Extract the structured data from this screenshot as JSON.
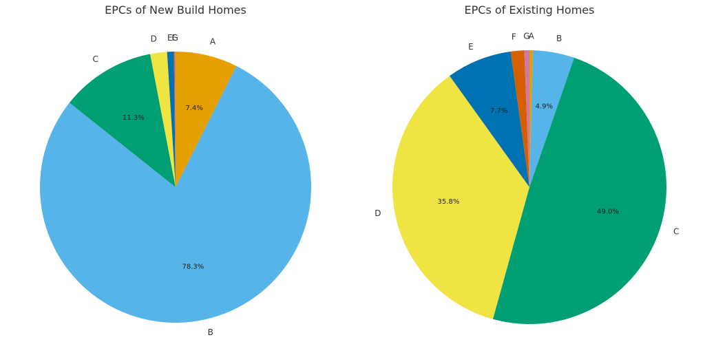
{
  "chart_data": [
    {
      "type": "pie",
      "title": "EPCs of New Build Homes",
      "start_angle_deg": 90,
      "direction": "clockwise",
      "slices": [
        {
          "label": "A",
          "value": 7.4,
          "pct_label": "7.4%",
          "color": "#E69F00"
        },
        {
          "label": "B",
          "value": 78.3,
          "pct_label": "78.3%",
          "color": "#56B4E9"
        },
        {
          "label": "C",
          "value": 11.3,
          "pct_label": "11.3%",
          "color": "#009E73"
        },
        {
          "label": "D",
          "value": 2.0,
          "pct_label": "",
          "color": "#F0E442"
        },
        {
          "label": "E",
          "value": 0.8,
          "pct_label": "",
          "color": "#0072B2"
        },
        {
          "label": "F",
          "value": 0.1,
          "pct_label": "",
          "color": "#D55E00"
        },
        {
          "label": "G",
          "value": 0.1,
          "pct_label": "",
          "color": "#CC79A7"
        }
      ]
    },
    {
      "type": "pie",
      "title": "EPCs of Existing Homes",
      "start_angle_deg": 90,
      "direction": "clockwise",
      "slices": [
        {
          "label": "A",
          "value": 0.4,
          "pct_label": "",
          "color": "#E69F00"
        },
        {
          "label": "B",
          "value": 4.9,
          "pct_label": "4.9%",
          "color": "#56B4E9"
        },
        {
          "label": "C",
          "value": 49.0,
          "pct_label": "49.0%",
          "color": "#009E73"
        },
        {
          "label": "D",
          "value": 35.8,
          "pct_label": "35.8%",
          "color": "#F0E442"
        },
        {
          "label": "E",
          "value": 7.7,
          "pct_label": "7.7%",
          "color": "#0072B2"
        },
        {
          "label": "F",
          "value": 1.6,
          "pct_label": "",
          "color": "#D55E00"
        },
        {
          "label": "G",
          "value": 0.6,
          "pct_label": "",
          "color": "#CC79A7"
        }
      ]
    }
  ]
}
